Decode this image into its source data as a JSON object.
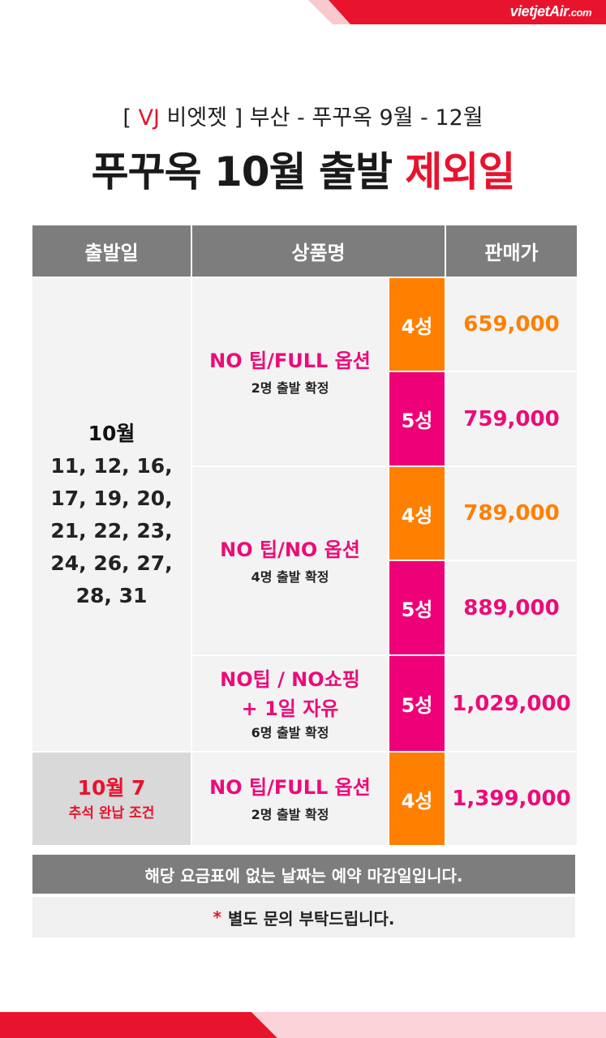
{
  "brand": {
    "name": "vietjetAir",
    "suffix": ".com"
  },
  "header": {
    "subtitle_bracket_open": "[",
    "subtitle_vj": "VJ",
    "subtitle_rest": " 비엣젯 ] 부산 - 푸꾸옥 9월 - 12월",
    "title_main": "푸꾸옥 10월 출발 ",
    "title_highlight": "제외일"
  },
  "table": {
    "columns": [
      "출발일",
      "상품명",
      "판매가"
    ],
    "group1": {
      "month": "10월",
      "days": "11, 12, 16,\n17, 19, 20,\n21, 22, 23,\n24, 26, 27,\n28, 31",
      "products": [
        {
          "name": "NO 팁/FULL 옵션",
          "note": "2명 출발 확정",
          "rows": [
            {
              "grade": "4성",
              "price": "659,000"
            },
            {
              "grade": "5성",
              "price": "759,000"
            }
          ]
        },
        {
          "name": "NO 팁/NO 옵션",
          "note": "4명 출발 확정",
          "rows": [
            {
              "grade": "4성",
              "price": "789,000"
            },
            {
              "grade": "5성",
              "price": "889,000"
            }
          ]
        },
        {
          "name": "NO팁 / NO쇼핑\n+ 1일 자유",
          "note": "6명 출발 확정",
          "rows": [
            {
              "grade": "5성",
              "price": "1,029,000"
            }
          ]
        }
      ]
    },
    "group2": {
      "month": "10월 7",
      "condition": "추석 완납 조건",
      "product": {
        "name": "NO 팁/FULL 옵션",
        "note": "2명 출발 확정"
      },
      "grade": "4성",
      "price": "1,399,000"
    }
  },
  "notes": {
    "closed": "해당 요금표에 없는 날짜는 예약 마감일입니다.",
    "star": "*",
    "inquiry": "별도 문의 부탁드립니다."
  },
  "colors": {
    "red": "#e8132d",
    "orange": "#ff7f00",
    "pink": "#ee0078",
    "header_gray": "#7d7d7d"
  }
}
